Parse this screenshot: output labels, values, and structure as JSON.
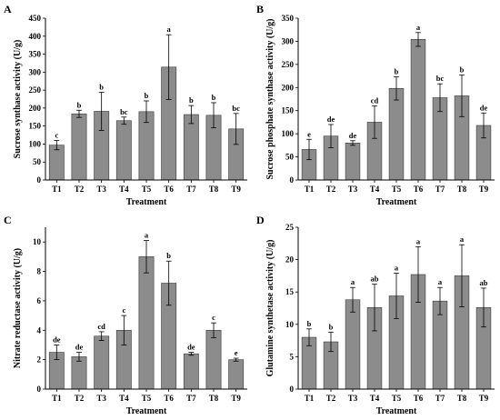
{
  "chart_data": [
    {
      "type": "bar",
      "panel": "A",
      "categories": [
        "T1",
        "T2",
        "T3",
        "T4",
        "T5",
        "T6",
        "T7",
        "T8",
        "T9"
      ],
      "values": [
        97,
        184,
        191,
        165,
        190,
        314,
        182,
        180,
        142
      ],
      "errors": [
        13,
        10,
        53,
        10,
        30,
        90,
        25,
        35,
        43
      ],
      "significance": [
        "c",
        "b",
        "b",
        "bc",
        "b",
        "a",
        "b",
        "b",
        "bc"
      ],
      "xlabel": "Treatment",
      "ylabel": "Sucrose synthase activity (U/g)",
      "ylim": [
        0,
        450
      ],
      "yticks": [
        0,
        50,
        100,
        150,
        200,
        250,
        300,
        350,
        400,
        450
      ],
      "bar_color": "#8c8c8c"
    },
    {
      "type": "bar",
      "panel": "B",
      "categories": [
        "T1",
        "T2",
        "T3",
        "T4",
        "T5",
        "T6",
        "T7",
        "T8",
        "T9"
      ],
      "values": [
        66,
        95,
        80,
        125,
        198,
        304,
        178,
        182,
        118
      ],
      "errors": [
        22,
        25,
        5,
        35,
        25,
        15,
        30,
        45,
        27
      ],
      "significance": [
        "e",
        "de",
        "de",
        "cd",
        "b",
        "a",
        "bc",
        "b",
        "de"
      ],
      "xlabel": "Treatment",
      "ylabel": "Sucrose phosphate synthase activity (U/g)",
      "ylim": [
        0,
        350
      ],
      "yticks": [
        0,
        50,
        100,
        150,
        200,
        250,
        300,
        350
      ],
      "bar_color": "#8c8c8c"
    },
    {
      "type": "bar",
      "panel": "C",
      "categories": [
        "T1",
        "T2",
        "T3",
        "T4",
        "T5",
        "T6",
        "T7",
        "T8",
        "T9"
      ],
      "values": [
        2.5,
        2.2,
        3.6,
        4.0,
        9.0,
        7.2,
        2.4,
        4.0,
        2.0
      ],
      "errors": [
        0.5,
        0.3,
        0.3,
        1.0,
        1.1,
        1.5,
        0.1,
        0.5,
        0.1
      ],
      "significance": [
        "de",
        "de",
        "cd",
        "c",
        "a",
        "b",
        "de",
        "c",
        "e"
      ],
      "xlabel": "Treatment",
      "ylabel": "Nitrate reductase activity (U/g)",
      "ylim": [
        0,
        11
      ],
      "yticks": [
        0,
        2,
        4,
        6,
        8,
        10
      ],
      "bar_color": "#8c8c8c"
    },
    {
      "type": "bar",
      "panel": "D",
      "categories": [
        "T1",
        "T2",
        "T3",
        "T4",
        "T5",
        "T6",
        "T7",
        "T8",
        "T9"
      ],
      "values": [
        8.0,
        7.3,
        13.8,
        12.6,
        14.4,
        17.7,
        13.6,
        17.5,
        12.6
      ],
      "errors": [
        1.3,
        1.5,
        1.9,
        3.6,
        3.5,
        4.3,
        2.1,
        4.8,
        3.0
      ],
      "significance": [
        "b",
        "b",
        "a",
        "ab",
        "a",
        "a",
        "a",
        "a",
        "ab"
      ],
      "xlabel": "Treatment",
      "ylabel": "Glutamine synthetase activity (U/g)",
      "ylim": [
        0,
        25
      ],
      "yticks": [
        0,
        5,
        10,
        15,
        20,
        25
      ],
      "bar_color": "#8c8c8c"
    }
  ]
}
